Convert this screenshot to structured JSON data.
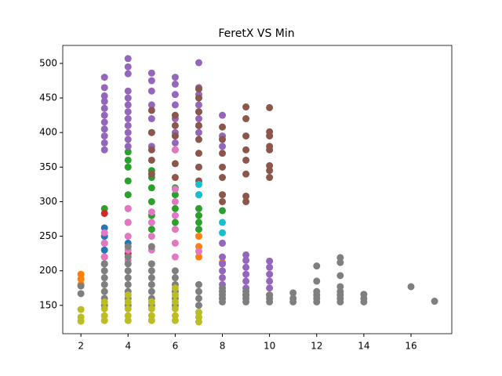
{
  "chart_data": {
    "type": "scatter",
    "title": "FeretX VS Min",
    "xlim": [
      1.23,
      17.73
    ],
    "ylim": [
      109,
      526
    ],
    "xticks": [
      2,
      4,
      6,
      8,
      10,
      12,
      14,
      16
    ],
    "yticks": [
      150,
      200,
      250,
      300,
      350,
      400,
      450,
      500
    ],
    "series": [
      {
        "color": "#1f77b4",
        "x": [
          3,
          3,
          3,
          3,
          4
        ],
        "values": [
          230,
          240,
          250,
          262,
          240
        ]
      },
      {
        "color": "#ff7f0e",
        "x": [
          2,
          2,
          2,
          7,
          7,
          7,
          8
        ],
        "values": [
          180,
          188,
          195,
          220,
          235,
          250,
          212
        ]
      },
      {
        "color": "#2ca02c",
        "x": [
          3,
          4,
          4,
          4,
          4,
          4,
          4,
          4,
          5,
          5,
          5,
          5,
          5,
          5,
          6,
          6,
          6,
          6,
          7,
          7,
          7,
          7,
          7,
          8
        ],
        "values": [
          290,
          270,
          290,
          310,
          330,
          350,
          360,
          372,
          260,
          280,
          300,
          320,
          335,
          345,
          270,
          290,
          310,
          320,
          260,
          270,
          280,
          290,
          310,
          287
        ]
      },
      {
        "color": "#d62728",
        "x": [
          3,
          3,
          3,
          4
        ],
        "values": [
          210,
          220,
          283,
          225
        ]
      },
      {
        "color": "#9467bd",
        "x": [
          3,
          3,
          3,
          3,
          3,
          3,
          3,
          3,
          3,
          3,
          3,
          4,
          4,
          4,
          4,
          4,
          4,
          4,
          4,
          4,
          4,
          4,
          4,
          5,
          5,
          5,
          5,
          5,
          5,
          5,
          6,
          6,
          6,
          6,
          6,
          6,
          6,
          7,
          7,
          7,
          7,
          7,
          7,
          7,
          7,
          8,
          8,
          8,
          8,
          8,
          8,
          8,
          8,
          8,
          8,
          8,
          9,
          9,
          9,
          9,
          9,
          9,
          9,
          10,
          10,
          10,
          10,
          10,
          10
        ],
        "values": [
          375,
          385,
          395,
          405,
          415,
          425,
          435,
          445,
          453,
          465,
          480,
          380,
          390,
          400,
          410,
          420,
          430,
          440,
          450,
          460,
          485,
          495,
          507,
          380,
          400,
          420,
          440,
          460,
          475,
          486,
          385,
          400,
          420,
          440,
          455,
          470,
          480,
          400,
          410,
          420,
          430,
          440,
          455,
          465,
          501,
          160,
          170,
          180,
          190,
          200,
          210,
          220,
          240,
          380,
          395,
          425,
          165,
          175,
          185,
          195,
          205,
          215,
          223,
          165,
          175,
          185,
          195,
          205,
          214
        ]
      },
      {
        "color": "#8c564b",
        "x": [
          5,
          5,
          5,
          5,
          5,
          6,
          6,
          6,
          6,
          6,
          6,
          7,
          7,
          7,
          7,
          7,
          7,
          7,
          7,
          8,
          8,
          8,
          8,
          8,
          8,
          8,
          9,
          9,
          9,
          9,
          9,
          9,
          9,
          9,
          10,
          10,
          10,
          10,
          10,
          10,
          10,
          10
        ],
        "values": [
          340,
          360,
          375,
          400,
          432,
          335,
          355,
          375,
          395,
          410,
          425,
          330,
          350,
          370,
          390,
          410,
          430,
          450,
          463,
          300,
          310,
          335,
          350,
          370,
          390,
          408,
          300,
          308,
          340,
          360,
          375,
          395,
          420,
          437,
          335,
          345,
          352,
          375,
          380,
          395,
          401,
          436
        ]
      },
      {
        "color": "#e377c2",
        "x": [
          3,
          3,
          3,
          4,
          4,
          4,
          4,
          4,
          5,
          5,
          5,
          5,
          5,
          6,
          6,
          6,
          6,
          6,
          6,
          6,
          7
        ],
        "values": [
          220,
          240,
          255,
          215,
          230,
          250,
          270,
          290,
          210,
          230,
          250,
          270,
          285,
          220,
          240,
          260,
          280,
          300,
          318,
          375,
          228
        ]
      },
      {
        "color": "#7f7f7f",
        "x": [
          2,
          2,
          3,
          3,
          3,
          3,
          3,
          3,
          3,
          4,
          4,
          4,
          4,
          4,
          4,
          4,
          4,
          4,
          5,
          5,
          5,
          5,
          5,
          5,
          5,
          5,
          6,
          6,
          6,
          6,
          6,
          6,
          7,
          7,
          7,
          7,
          8,
          8,
          8,
          8,
          8,
          9,
          9,
          9,
          9,
          10,
          10,
          10,
          11,
          11,
          11,
          12,
          12,
          12,
          12,
          12,
          12,
          13,
          13,
          13,
          13,
          13,
          13,
          13,
          13,
          14,
          14,
          14,
          16,
          17
        ],
        "values": [
          167,
          178,
          150,
          160,
          170,
          180,
          190,
          200,
          210,
          150,
          160,
          170,
          180,
          190,
          200,
          210,
          220,
          235,
          150,
          160,
          170,
          180,
          190,
          200,
          210,
          235,
          150,
          160,
          170,
          180,
          190,
          200,
          150,
          160,
          170,
          180,
          155,
          160,
          165,
          170,
          175,
          155,
          160,
          165,
          170,
          155,
          160,
          165,
          155,
          160,
          168,
          155,
          160,
          165,
          170,
          185,
          207,
          155,
          160,
          165,
          170,
          177,
          193,
          212,
          219,
          155,
          160,
          166,
          177,
          156
        ]
      },
      {
        "color": "#bcbd22",
        "x": [
          2,
          2,
          2,
          3,
          3,
          3,
          3,
          4,
          4,
          4,
          4,
          4,
          5,
          5,
          5,
          5,
          6,
          6,
          6,
          6,
          6,
          6,
          7,
          7,
          7
        ],
        "values": [
          127,
          133,
          144,
          128,
          135,
          145,
          155,
          128,
          135,
          145,
          155,
          165,
          128,
          135,
          145,
          155,
          128,
          135,
          145,
          155,
          165,
          175,
          126,
          133,
          140
        ]
      },
      {
        "color": "#17becf",
        "x": [
          7,
          7,
          8,
          8
        ],
        "values": [
          310,
          325,
          255,
          270
        ]
      }
    ]
  }
}
